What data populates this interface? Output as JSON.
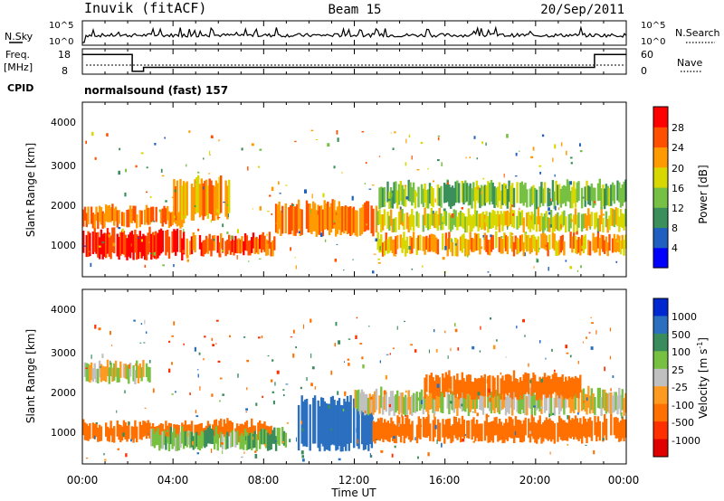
{
  "header": {
    "station": "Inuvik (fitACF)",
    "beam": "Beam 15",
    "date": "20/Sep/2011"
  },
  "noise_panel": {
    "left_label": "N.Sky",
    "right_label": "N.Search",
    "left_ticks": [
      "10^5",
      "10^0"
    ],
    "right_ticks": [
      "10^5",
      "10^0"
    ]
  },
  "freq_panel": {
    "left_label_1": "Freq.",
    "left_label_2": "[MHz]",
    "right_label": "Nave",
    "left_ticks": [
      "18",
      "8"
    ],
    "right_ticks": [
      "60",
      "0"
    ],
    "freq_steps": [
      {
        "from": 0.0,
        "to": 2.2,
        "value": 17
      },
      {
        "from": 2.2,
        "to": 2.7,
        "value": 8.5
      },
      {
        "from": 2.7,
        "to": 22.6,
        "value": 10.5
      },
      {
        "from": 22.6,
        "to": 24.0,
        "value": 17
      }
    ]
  },
  "cpid": {
    "label": "CPID",
    "value": "normalsound (fast) 157"
  },
  "power_panel": {
    "ylabel": "Slant Range [km]",
    "yticks": [
      "1000",
      "2000",
      "3000",
      "4000"
    ],
    "cbar_label": "Power [dB]",
    "cbar_ticks": [
      "4",
      "8",
      "12",
      "16",
      "20",
      "24",
      "28"
    ],
    "cbar_colors": [
      "#0000ff",
      "#1f5fbf",
      "#3b8f5a",
      "#76c043",
      "#d8d800",
      "#ff9a00",
      "#ff5000",
      "#ff0000"
    ]
  },
  "velocity_panel": {
    "ylabel": "Slant Range [km]",
    "yticks": [
      "1000",
      "2000",
      "3000",
      "4000"
    ],
    "cbar_label": "Velocity [m s",
    "cbar_label_sup": "-1",
    "cbar_label_end": "]",
    "cbar_ticks": [
      "1000",
      "500",
      "100",
      "25",
      "-25",
      "-100",
      "-500",
      "-1000"
    ],
    "cbar_colors": [
      "#0028d0",
      "#2a6fc0",
      "#3a8c5c",
      "#78c040",
      "#c0c0c0",
      "#ff9a20",
      "#ff7000",
      "#ff3000",
      "#e00000"
    ]
  },
  "xaxis": {
    "ticks": [
      "00:00",
      "04:00",
      "08:00",
      "12:00",
      "16:00",
      "20:00",
      "00:00"
    ],
    "label": "Time UT"
  },
  "chart_data": {
    "type": "heatmap",
    "title": "Inuvik (fitACF)  Beam 15  20/Sep/2011",
    "xlabel": "Time UT",
    "ylabel": "Slant Range [km]",
    "xlim_hours": [
      0,
      24
    ],
    "ylim_km": [
      180,
      4600
    ],
    "power_bands": [
      {
        "t0": 0.0,
        "t1": 4.5,
        "r0": 700,
        "r1": 1300,
        "db": 28
      },
      {
        "t0": 0.0,
        "t1": 4.5,
        "r0": 1500,
        "r1": 1900,
        "db": 24
      },
      {
        "t0": 4.5,
        "t1": 8.5,
        "r0": 800,
        "r1": 1200,
        "db": 26
      },
      {
        "t0": 4.0,
        "t1": 6.5,
        "r0": 1700,
        "r1": 2600,
        "db": 22
      },
      {
        "t0": 8.5,
        "t1": 13.0,
        "r0": 1300,
        "r1": 2000,
        "db": 24
      },
      {
        "t0": 13.0,
        "t1": 24.0,
        "r0": 800,
        "r1": 1200,
        "db": 22
      },
      {
        "t0": 13.0,
        "t1": 24.0,
        "r0": 1400,
        "r1": 1800,
        "db": 18
      },
      {
        "t0": 13.0,
        "t1": 24.0,
        "r0": 2000,
        "r1": 2500,
        "db": 14
      }
    ],
    "velocity_bands": [
      {
        "t0": 0.0,
        "t1": 3.0,
        "r0": 2300,
        "r1": 2700,
        "v": 0
      },
      {
        "t0": 0.0,
        "t1": 8.5,
        "r0": 800,
        "r1": 1200,
        "v": -300
      },
      {
        "t0": 3.0,
        "t1": 9.0,
        "r0": 600,
        "r1": 1000,
        "v": 80
      },
      {
        "t0": 9.5,
        "t1": 12.8,
        "r0": 600,
        "r1": 1800,
        "v": 800
      },
      {
        "t0": 12.8,
        "t1": 24.0,
        "r0": 800,
        "r1": 1300,
        "v": -300
      },
      {
        "t0": 12.0,
        "t1": 24.0,
        "r0": 1500,
        "r1": 2000,
        "v": 0
      },
      {
        "t0": 15.0,
        "t1": 22.0,
        "r0": 1900,
        "r1": 2400,
        "v": -200
      }
    ]
  }
}
